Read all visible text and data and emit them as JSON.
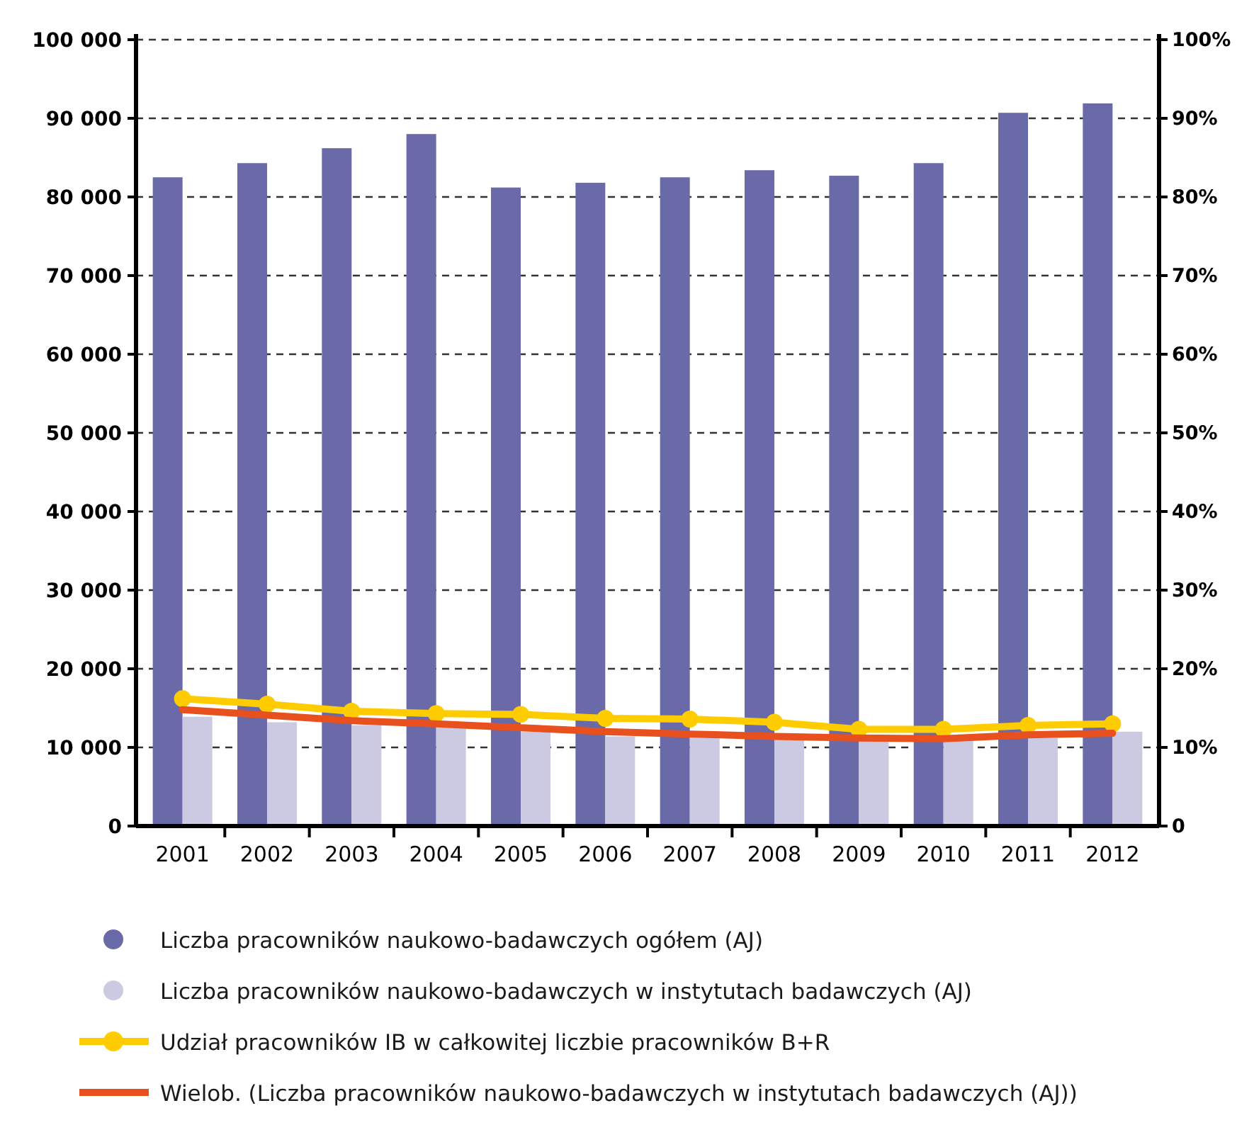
{
  "chart_data": {
    "type": "bar",
    "categories": [
      "2001",
      "2002",
      "2003",
      "2004",
      "2005",
      "2006",
      "2007",
      "2008",
      "2009",
      "2010",
      "2011",
      "2012"
    ],
    "series": [
      {
        "name": "Liczba pracowników naukowo-badawczych ogółem (AJ)",
        "color": "#6a6aa8",
        "values": [
          82500,
          84300,
          86200,
          88000,
          81200,
          81800,
          82500,
          83400,
          82700,
          84300,
          90700,
          91900
        ]
      },
      {
        "name": "Liczba pracowników naukowo-badawczych w instytutach badawczych (AJ)",
        "color": "#cccae2",
        "values": [
          13900,
          13200,
          12800,
          12500,
          12000,
          11400,
          11200,
          11300,
          11000,
          11000,
          11200,
          12000
        ]
      },
      {
        "name": "Udział pracowników IB w całkowitej liczbie pracowników B+R",
        "type": "line",
        "axis": "y2",
        "marker": "circle",
        "color": "#ffcc00",
        "values": [
          16.2,
          15.5,
          14.6,
          14.3,
          14.2,
          13.7,
          13.6,
          13.2,
          12.3,
          12.3,
          12.8,
          13
        ]
      },
      {
        "name": "Wielob. (Liczba pracowników naukowo-badawczych w instytutach badawczych (AJ))",
        "type": "line",
        "marker": "none",
        "color": "#e8501e",
        "values": [
          14800,
          14100,
          13400,
          13000,
          12500,
          12000,
          11700,
          11400,
          11200,
          11100,
          11600,
          11800
        ]
      }
    ],
    "ylim": [
      0,
      100000
    ],
    "yticks": [
      0,
      {
        "value": 10000,
        "label": "10 000"
      },
      {
        "value": 20000,
        "label": "20 000"
      },
      {
        "value": 30000,
        "label": "30 000"
      },
      {
        "value": 40000,
        "label": "40 000"
      },
      {
        "value": 50000,
        "label": "50 000"
      },
      {
        "value": 60000,
        "label": "60 000"
      },
      {
        "value": 70000,
        "label": "70 000"
      },
      {
        "value": 80000,
        "label": "80 000"
      },
      {
        "value": 90000,
        "label": "90 000"
      },
      {
        "value": 100000,
        "label": "100 000"
      }
    ],
    "y2lim": [
      0,
      100
    ],
    "y2ticks": [
      0,
      {
        "value": 10,
        "label": "10%"
      },
      {
        "value": 20,
        "label": "20%"
      },
      {
        "value": 30,
        "label": "30%"
      },
      {
        "value": 40,
        "label": "40%"
      },
      {
        "value": 50,
        "label": "50%"
      },
      {
        "value": 60,
        "label": "60%"
      },
      {
        "value": 70,
        "label": "70%"
      },
      {
        "value": 80,
        "label": "80%"
      },
      {
        "value": 90,
        "label": "90%"
      },
      {
        "value": 100,
        "label": "100%"
      }
    ],
    "grid": "y",
    "legend": "bottom",
    "line_style": "solid"
  }
}
